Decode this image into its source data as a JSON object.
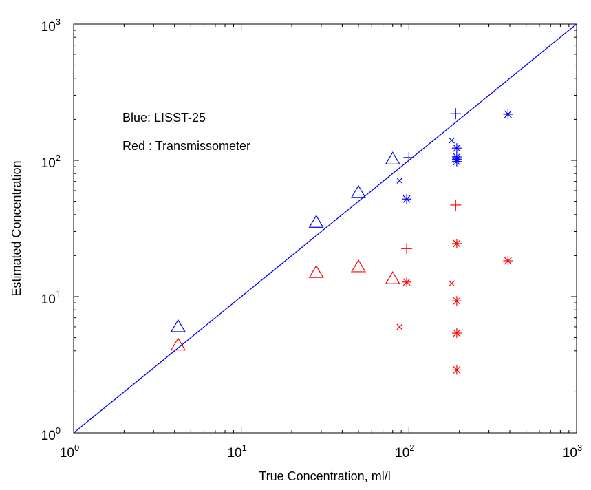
{
  "chart_data": {
    "type": "scatter",
    "title": "",
    "xlabel": "True Concentration, ml/l",
    "ylabel": "Estimated Concentration",
    "xscale": "log",
    "yscale": "log",
    "xlim": [
      1,
      1000
    ],
    "ylim": [
      1,
      1000
    ],
    "grid": false,
    "x_ticks": [
      {
        "base": "10",
        "exp": "0",
        "value": 1
      },
      {
        "base": "10",
        "exp": "1",
        "value": 10
      },
      {
        "base": "10",
        "exp": "2",
        "value": 100
      },
      {
        "base": "10",
        "exp": "3",
        "value": 1000
      }
    ],
    "y_ticks": [
      {
        "base": "10",
        "exp": "0",
        "value": 1
      },
      {
        "base": "10",
        "exp": "1",
        "value": 10
      },
      {
        "base": "10",
        "exp": "2",
        "value": 100
      },
      {
        "base": "10",
        "exp": "3",
        "value": 1000
      }
    ],
    "annotations": [
      "Blue: LISST-25",
      "Red : Transmissometer"
    ],
    "reference_line": {
      "x": [
        1,
        1000
      ],
      "y": [
        1,
        1000
      ],
      "color": "#0000ff"
    },
    "series": [
      {
        "color": "#0000ff",
        "marker": "triangle",
        "x": [
          4.2,
          28,
          50,
          80
        ],
        "y": [
          6.0,
          35,
          58,
          102
        ]
      },
      {
        "color": "#ff0000",
        "marker": "triangle",
        "x": [
          4.2,
          28,
          50,
          80
        ],
        "y": [
          4.4,
          15,
          16.5,
          13.5
        ]
      },
      {
        "color": "#0000ff",
        "marker": "plus",
        "x": [
          100,
          190
        ],
        "y": [
          105,
          220
        ]
      },
      {
        "color": "#ff0000",
        "marker": "plus",
        "x": [
          97,
          190
        ],
        "y": [
          22.5,
          47
        ]
      },
      {
        "color": "#0000ff",
        "marker": "x",
        "x": [
          88,
          180
        ],
        "y": [
          71,
          140
        ]
      },
      {
        "color": "#ff0000",
        "marker": "x",
        "x": [
          88,
          180
        ],
        "y": [
          6.0,
          12.5
        ]
      },
      {
        "color": "#0000ff",
        "marker": "asterisk",
        "x": [
          97,
          193,
          193,
          193,
          193,
          390
        ],
        "y": [
          52,
          123,
          106,
          102,
          98,
          218
        ]
      },
      {
        "color": "#ff0000",
        "marker": "asterisk",
        "x": [
          97,
          193,
          193,
          193,
          193,
          390
        ],
        "y": [
          12.8,
          24.5,
          9.3,
          5.4,
          2.9,
          18.3
        ]
      }
    ]
  }
}
